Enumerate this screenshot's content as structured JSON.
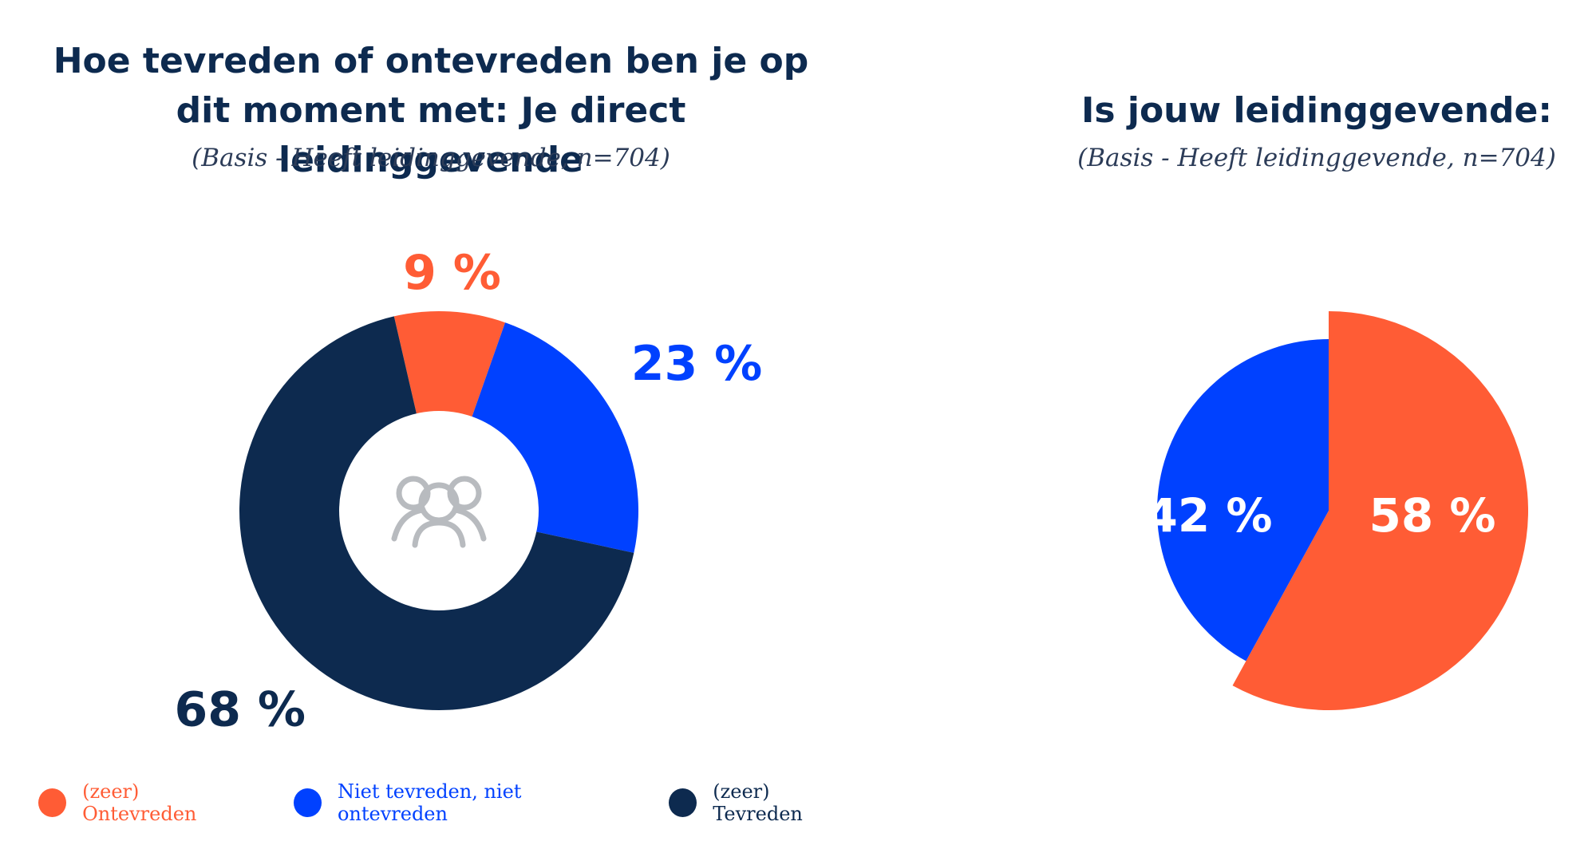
{
  "colors": {
    "orange": "#ff5c35",
    "blue": "#0041ff",
    "navy": "#0d2a4f",
    "icon_gray": "#b8bbbf"
  },
  "chart_data": [
    {
      "type": "pie",
      "variant": "donut",
      "title": "Hoe tevreden of ontevreden ben je op dit moment met: Je direct leidinggevende",
      "subtitle": "(Basis - Heeft leidinggevende, n=704)",
      "center_icon": "people-group-icon",
      "unit": "%",
      "slices": [
        {
          "label": "(zeer) Ontevreden",
          "value": 9,
          "display": "9 %",
          "color": "#ff5c35"
        },
        {
          "label": "Niet tevreden, niet ontevreden",
          "value": 23,
          "display": "23 %",
          "color": "#0041ff"
        },
        {
          "label": "(zeer) Tevreden",
          "value": 68,
          "display": "68 %",
          "color": "#0d2a4f"
        }
      ],
      "legend": {
        "placement": "bottom-left",
        "items": [
          {
            "label": "(zeer) Ontevreden",
            "color": "#ff5c35"
          },
          {
            "label": "Niet tevreden, niet ontevreden",
            "color": "#0041ff"
          },
          {
            "label": "(zeer) Tevreden",
            "color": "#0d2a4f"
          }
        ]
      }
    },
    {
      "type": "pie",
      "title": "Is jouw leidinggevende:",
      "subtitle": "(Basis - Heeft leidinggevende, n=704)",
      "unit": "%",
      "slices": [
        {
          "value": 58,
          "display": "58 %",
          "color": "#ff5c35"
        },
        {
          "value": 42,
          "display": "42 %",
          "color": "#0041ff"
        }
      ]
    }
  ]
}
